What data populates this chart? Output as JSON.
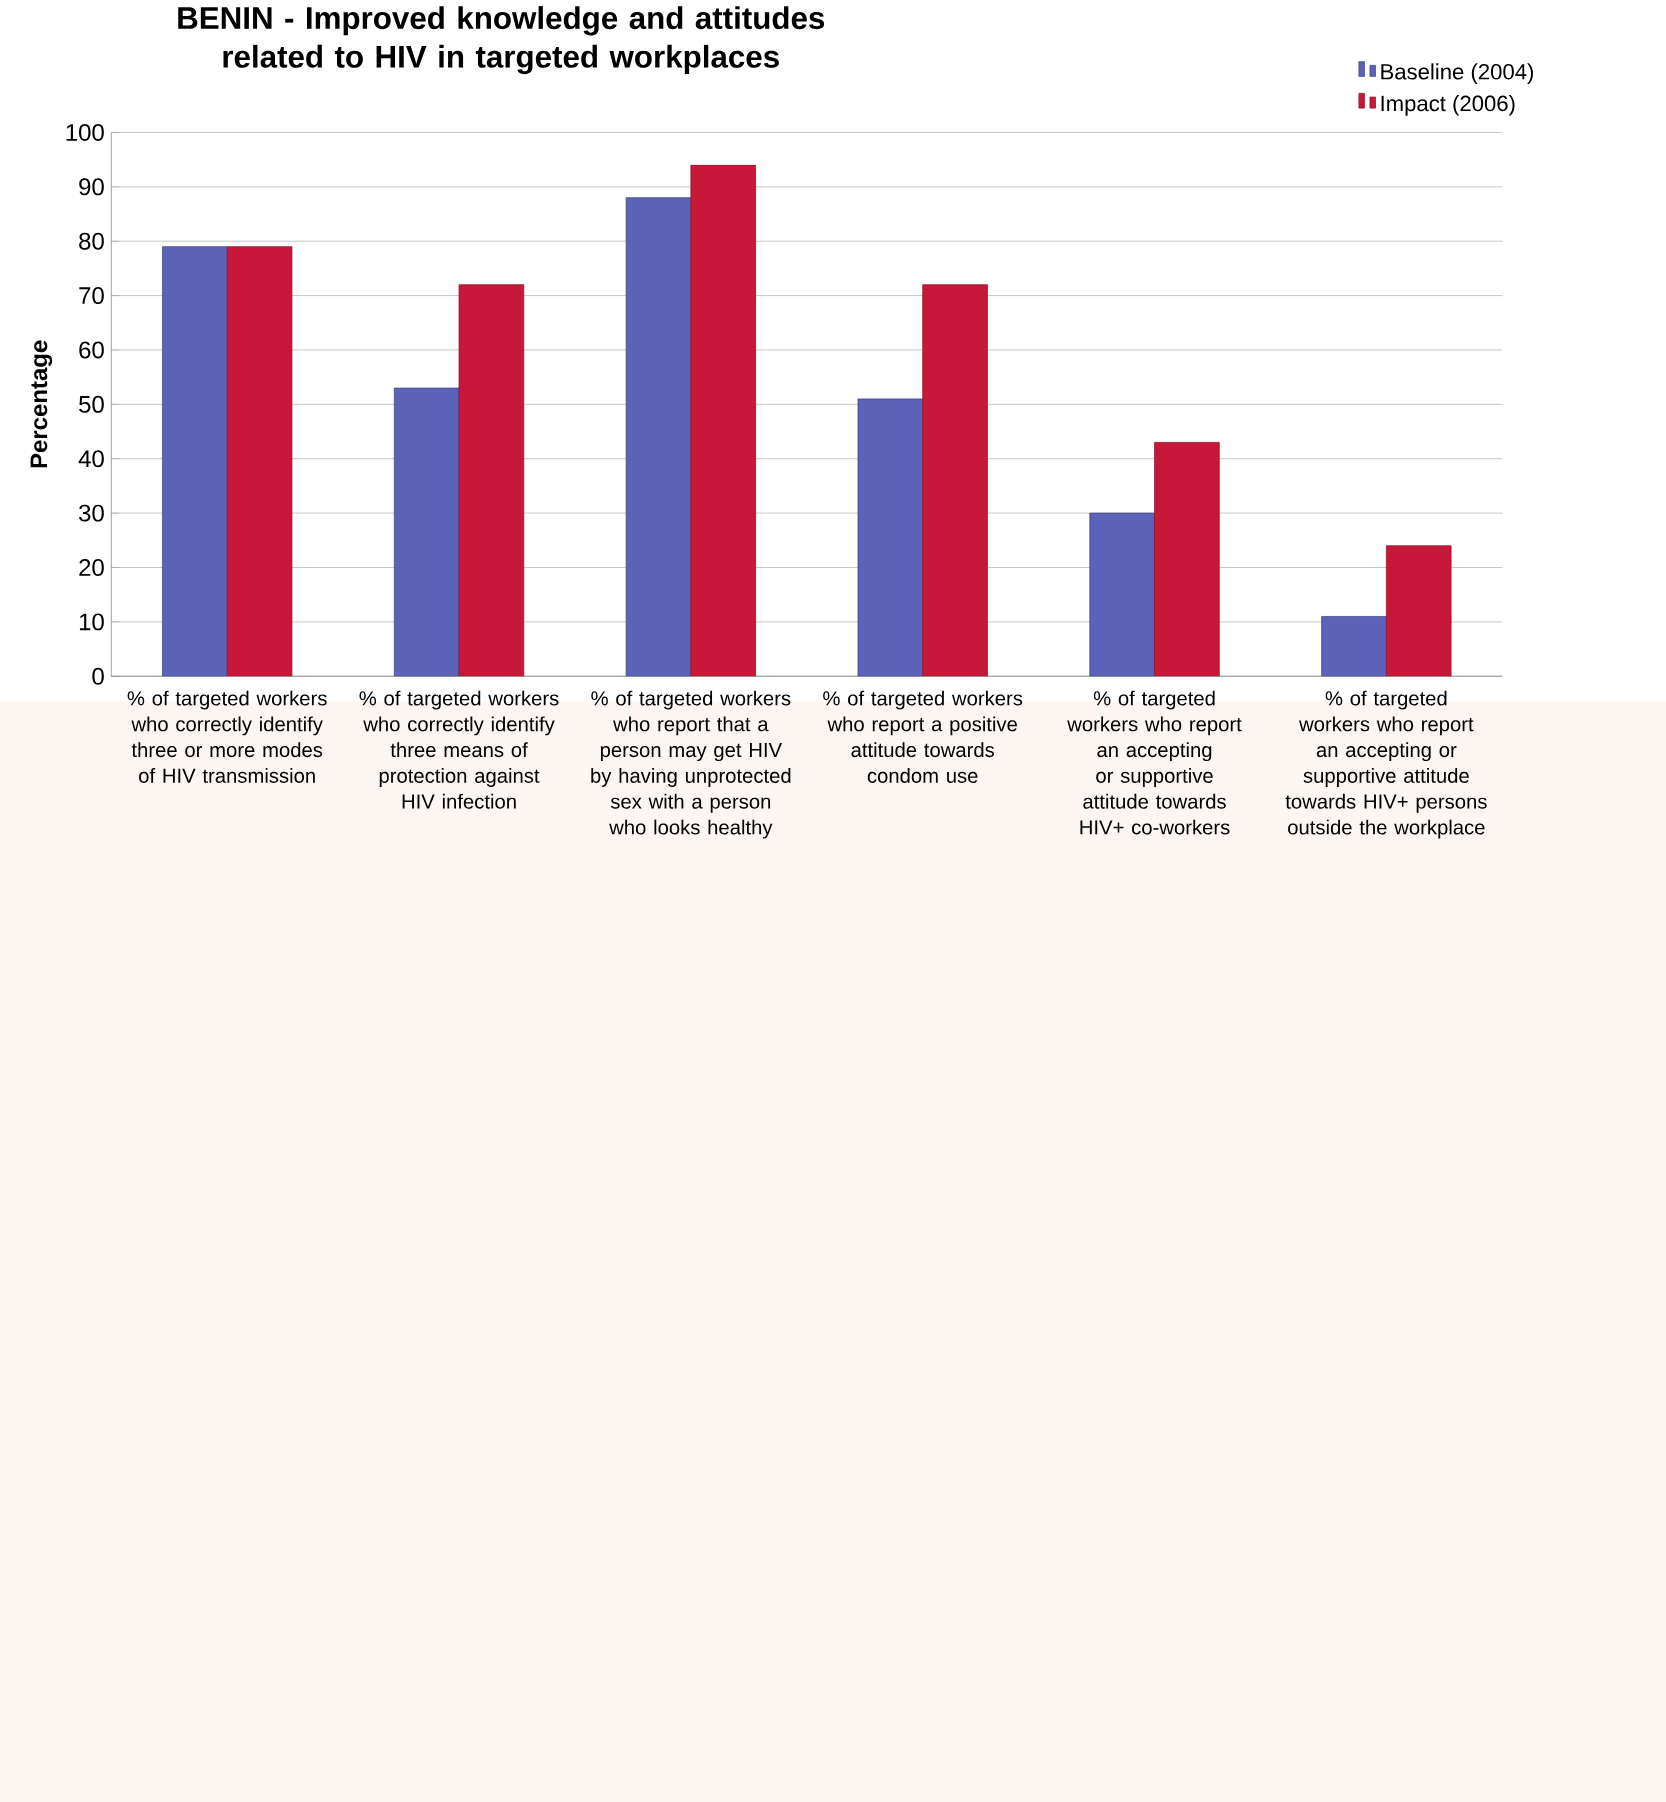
{
  "chart_data": {
    "type": "bar",
    "title": "BENIN - Improved knowledge and attitudes related to HIV in targeted workplaces",
    "ylabel": "Percentage",
    "categories": [
      "% of targeted workers who correctly identify three or more modes of HIV transmission",
      "% of targeted workers who correctly identify three means of protection against HIV infection",
      "% of targeted workers who report that a person may get HIV by having unprotected sex with a person who looks healthy",
      "% of targeted workers who report a positive attitude towards condom use",
      "% of targeted workers who report an accepting or supportive attitude towards HIV+ co-workers",
      "% of targeted workers who report an accepting or supportive attitude towards HIV+ persons outside the workplace"
    ],
    "series": [
      {
        "name": "Baseline (2004)",
        "color": "#5b62b8",
        "values": [
          79,
          53,
          88,
          51,
          30,
          11
        ]
      },
      {
        "name": "Impact (2006)",
        "color": "#c8183a",
        "values": [
          79,
          72,
          94,
          72,
          43,
          24
        ]
      }
    ],
    "ylim": [
      0,
      100
    ],
    "yticks": [
      0,
      10,
      20,
      30,
      40,
      50,
      60,
      70,
      80,
      90,
      100
    ],
    "grid": "y",
    "legend": "top right"
  }
}
